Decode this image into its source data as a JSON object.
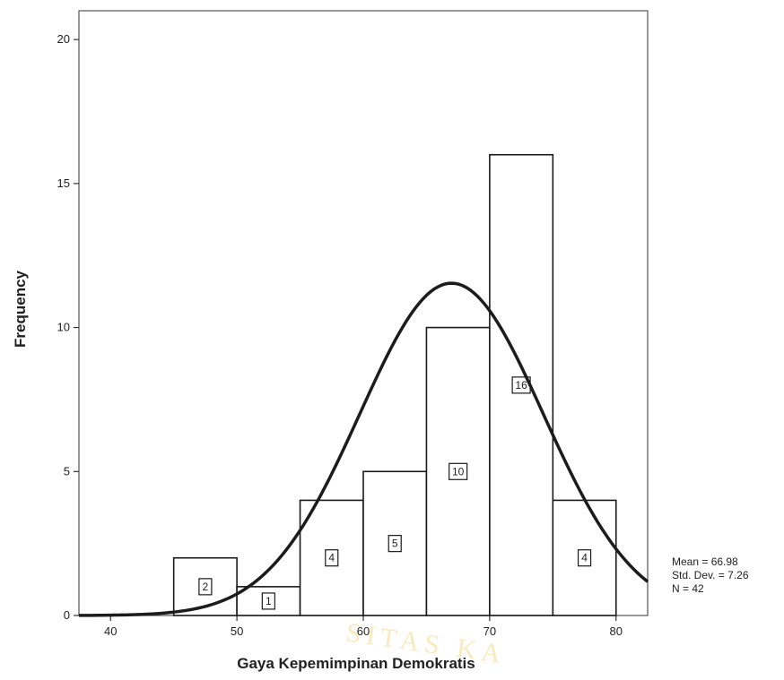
{
  "chart_data": {
    "type": "bar",
    "subtype": "histogram",
    "bins": [
      {
        "x0": 45,
        "x1": 50,
        "value": 2,
        "label": "2"
      },
      {
        "x0": 50,
        "x1": 55,
        "value": 1,
        "label": "1"
      },
      {
        "x0": 55,
        "x1": 60,
        "value": 4,
        "label": "4"
      },
      {
        "x0": 60,
        "x1": 65,
        "value": 5,
        "label": "5"
      },
      {
        "x0": 65,
        "x1": 70,
        "value": 10,
        "label": "10"
      },
      {
        "x0": 70,
        "x1": 75,
        "value": 16,
        "label": "16"
      },
      {
        "x0": 75,
        "x1": 80,
        "value": 4,
        "label": "4"
      }
    ],
    "xlabel": "Gaya Kepemimpinan Demokratis",
    "ylabel": "Frequency",
    "xlim": [
      37.5,
      82.5
    ],
    "ylim": [
      0,
      21
    ],
    "xticks": [
      40,
      50,
      60,
      70,
      80
    ],
    "yticks": [
      0,
      5,
      10,
      15,
      20
    ],
    "normal_curve": {
      "mean": 66.98,
      "std_dev": 7.26,
      "n": 42,
      "bin_width": 5
    },
    "stats": {
      "mean": "Mean = 66.98",
      "std_dev": "Std. Dev. = 7.26",
      "n": "N = 42"
    },
    "grid": false,
    "watermark": "SITAS KA"
  }
}
